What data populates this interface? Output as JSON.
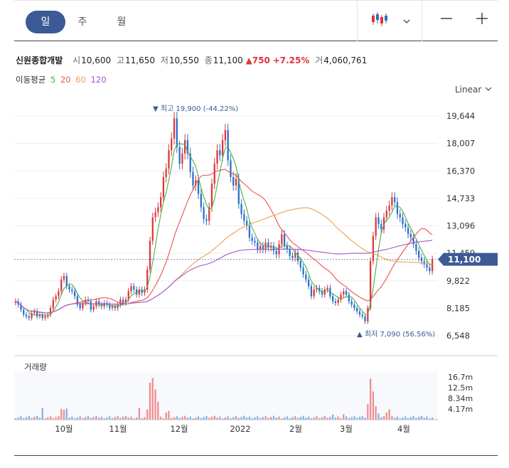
{
  "toolbar": {
    "periods": [
      "일",
      "주",
      "월"
    ],
    "active_period": 0,
    "chart_type_icon": "candlestick-icon",
    "dropdown_icon": "chevron-down-icon",
    "zoom_out_icon": "minus-icon",
    "zoom_in_icon": "plus-icon"
  },
  "stock": {
    "name": "신원종합개발",
    "open_label": "시",
    "open": "10,600",
    "high_label": "고",
    "high": "11,650",
    "low_label": "저",
    "low": "10,550",
    "close_label": "종",
    "close": "11,100",
    "change": "▲750",
    "change_pct": "+7.25%",
    "volume_label": "거",
    "volume": "4,060,761"
  },
  "ma": {
    "label": "이동평균",
    "periods": [
      "5",
      "20",
      "60",
      "120"
    ],
    "colors": [
      "#4cae4c",
      "#e9534f",
      "#f0a04b",
      "#9b59d0"
    ]
  },
  "scale_label": "Linear",
  "scale_icon": "chevron-down-icon",
  "colors": {
    "up": "#e0353a",
    "down": "#2a6fc9",
    "price_tag": "#3c5a96",
    "grid": "#eeeeee"
  },
  "chart_data": {
    "type": "candlestick",
    "x_labels": [
      "10월",
      "11월",
      "12월",
      "2022",
      "2월",
      "3월",
      "4월"
    ],
    "y_ticks": [
      "19,644",
      "18,007",
      "16,370",
      "14,733",
      "13,096",
      "11,459",
      "9,822",
      "8,185",
      "6,548"
    ],
    "ylim": [
      6548,
      19644
    ],
    "current_price_tag": "11,100",
    "max_annotation": "▼ 최고 19,900 (-44.22%)",
    "min_annotation": "▲ 최저 7,090 (56.56%)",
    "close_series": [
      8600,
      8400,
      8100,
      7800,
      7700,
      7600,
      7900,
      8000,
      7700,
      7800,
      7600,
      7700,
      7800,
      8200,
      8700,
      8900,
      9200,
      9900,
      10100,
      9500,
      9300,
      9200,
      8900,
      8400,
      8200,
      8500,
      8700,
      8600,
      8100,
      8300,
      8600,
      8400,
      8300,
      8500,
      8400,
      8200,
      8300,
      8200,
      8400,
      8700,
      8500,
      8700,
      9200,
      9500,
      9300,
      9000,
      9300,
      9100,
      9300,
      10500,
      12200,
      13600,
      13900,
      14200,
      14800,
      16000,
      16500,
      17600,
      18300,
      19500,
      17800,
      16800,
      17400,
      18200,
      17400,
      16300,
      15500,
      15800,
      15000,
      14200,
      13500,
      13400,
      14200,
      15600,
      16800,
      17600,
      17300,
      18200,
      18800,
      17000,
      16000,
      15500,
      15900,
      14400,
      13800,
      13400,
      13100,
      12400,
      12200,
      12100,
      11700,
      11900,
      11700,
      12100,
      11800,
      11900,
      11600,
      11400,
      12000,
      12600,
      11900,
      11700,
      11300,
      11200,
      11500,
      11000,
      10600,
      10200,
      9900,
      9500,
      8900,
      9300,
      9400,
      9200,
      9000,
      9300,
      9400,
      8900,
      8600,
      8500,
      8700,
      9000,
      9200,
      9000,
      8600,
      8400,
      8200,
      8000,
      7800,
      7700,
      7400,
      8200,
      11000,
      12500,
      13600,
      13200,
      12900,
      13600,
      14000,
      14300,
      14800,
      14500,
      13800,
      13600,
      13200,
      13000,
      12600,
      12400,
      12000,
      11600,
      11200,
      11000,
      10800,
      10600,
      10400,
      11100
    ],
    "volume_max_label": "16.7m",
    "volume_ticks": [
      "16.7m",
      "12.5m",
      "8.34m",
      "4.17m"
    ],
    "volume_title": "거래량"
  }
}
